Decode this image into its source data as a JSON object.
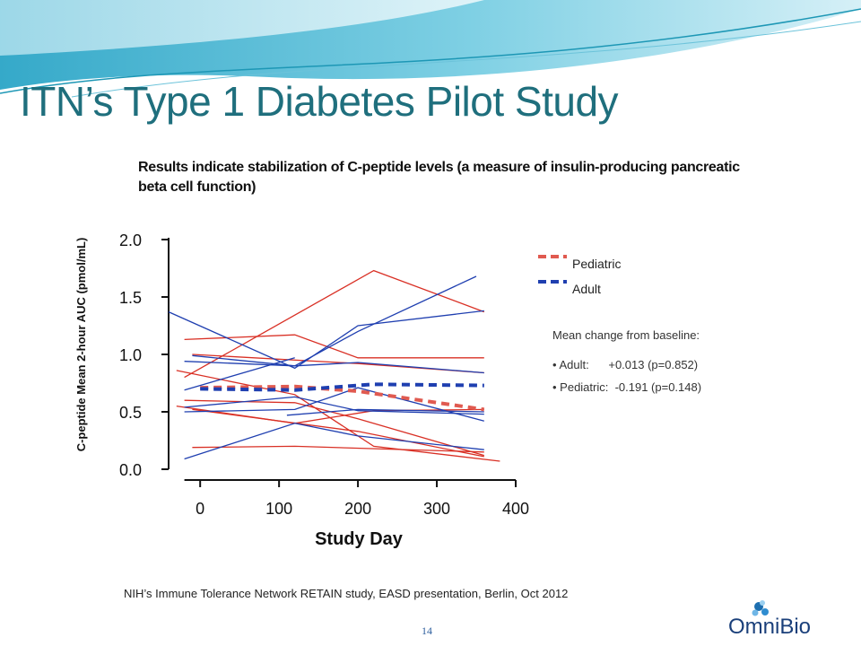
{
  "slide": {
    "title": "ITN’s Type 1 Diabetes Pilot Study",
    "subtitle": "Results indicate stabilization of C-peptide levels (a measure of insulin-producing pancreatic beta cell function)",
    "source": "NIH’s Immune Tolerance Network RETAIN study, EASD presentation, Berlin, Oct 2012",
    "page_number": "14",
    "logo_text": "OmniBio"
  },
  "legend": {
    "pediatric_label": "Pediatric",
    "adult_label": "Adult"
  },
  "stats": {
    "heading": "Mean  change from baseline:",
    "adult": "• Adult:      +0.013 (p=0.852)",
    "pediatric": "• Pediatric:  -0.191 (p=0.148)"
  },
  "colors": {
    "pediatric": "#d93025",
    "adult": "#1f3fb0",
    "title": "#1f6f7d"
  },
  "chart_data": {
    "type": "line",
    "xlabel": "Study Day",
    "ylabel": "C-peptide Mean 2-hour AUC (pmol/mL)",
    "xlim": [
      -40,
      400
    ],
    "ylim": [
      0,
      2.0
    ],
    "x_ticks": [
      "0",
      "100",
      "200",
      "300",
      "400"
    ],
    "y_ticks": [
      "0.0",
      "0.5",
      "1.0",
      "1.5",
      "2.0"
    ],
    "grid": false,
    "legend_position": "right",
    "mean_series": [
      {
        "name": "Pediatric",
        "group": "pediatric",
        "points": [
          [
            0,
            0.71
          ],
          [
            120,
            0.72
          ],
          [
            200,
            0.68
          ],
          [
            360,
            0.52
          ]
        ]
      },
      {
        "name": "Adult",
        "group": "adult",
        "points": [
          [
            0,
            0.7
          ],
          [
            120,
            0.69
          ],
          [
            220,
            0.74
          ],
          [
            360,
            0.73
          ]
        ]
      }
    ],
    "individual_series": [
      {
        "group": "pediatric",
        "points": [
          [
            -20,
            0.8
          ],
          [
            220,
            1.73
          ],
          [
            360,
            1.37
          ]
        ]
      },
      {
        "group": "pediatric",
        "points": [
          [
            -20,
            1.13
          ],
          [
            120,
            1.17
          ],
          [
            200,
            0.97
          ],
          [
            360,
            0.97
          ]
        ]
      },
      {
        "group": "pediatric",
        "points": [
          [
            -10,
            1.0
          ],
          [
            200,
            0.92
          ],
          [
            360,
            0.84
          ]
        ]
      },
      {
        "group": "pediatric",
        "points": [
          [
            -30,
            0.86
          ],
          [
            120,
            0.65
          ],
          [
            220,
            0.2
          ],
          [
            380,
            0.07
          ]
        ]
      },
      {
        "group": "pediatric",
        "points": [
          [
            -20,
            0.6
          ],
          [
            120,
            0.58
          ],
          [
            200,
            0.44
          ],
          [
            360,
            0.12
          ]
        ]
      },
      {
        "group": "pediatric",
        "points": [
          [
            -30,
            0.55
          ],
          [
            120,
            0.4
          ],
          [
            220,
            0.51
          ],
          [
            360,
            0.52
          ]
        ]
      },
      {
        "group": "pediatric",
        "points": [
          [
            -10,
            0.19
          ],
          [
            120,
            0.2
          ],
          [
            360,
            0.15
          ]
        ]
      },
      {
        "group": "pediatric",
        "points": [
          [
            -10,
            0.52
          ],
          [
            200,
            0.33
          ],
          [
            360,
            0.11
          ]
        ]
      },
      {
        "group": "adult",
        "points": [
          [
            -40,
            1.37
          ],
          [
            120,
            0.88
          ],
          [
            200,
            1.25
          ],
          [
            360,
            1.38
          ]
        ]
      },
      {
        "group": "adult",
        "points": [
          [
            -20,
            0.69
          ],
          [
            120,
            0.97
          ]
        ]
      },
      {
        "group": "adult",
        "points": [
          [
            -20,
            0.94
          ],
          [
            120,
            0.9
          ],
          [
            200,
            1.2
          ],
          [
            350,
            1.68
          ]
        ]
      },
      {
        "group": "adult",
        "points": [
          [
            -10,
            0.99
          ],
          [
            120,
            0.9
          ],
          [
            200,
            0.93
          ],
          [
            360,
            0.84
          ]
        ]
      },
      {
        "group": "adult",
        "points": [
          [
            -20,
            0.5
          ],
          [
            120,
            0.52
          ],
          [
            200,
            0.71
          ],
          [
            360,
            0.42
          ]
        ]
      },
      {
        "group": "adult",
        "points": [
          [
            -20,
            0.54
          ],
          [
            120,
            0.63
          ],
          [
            200,
            0.51
          ],
          [
            360,
            0.48
          ]
        ]
      },
      {
        "group": "adult",
        "points": [
          [
            110,
            0.47
          ],
          [
            200,
            0.52
          ],
          [
            360,
            0.5
          ]
        ]
      },
      {
        "group": "adult",
        "points": [
          [
            -20,
            0.09
          ],
          [
            120,
            0.4
          ],
          [
            200,
            0.29
          ],
          [
            360,
            0.17
          ]
        ]
      }
    ]
  }
}
